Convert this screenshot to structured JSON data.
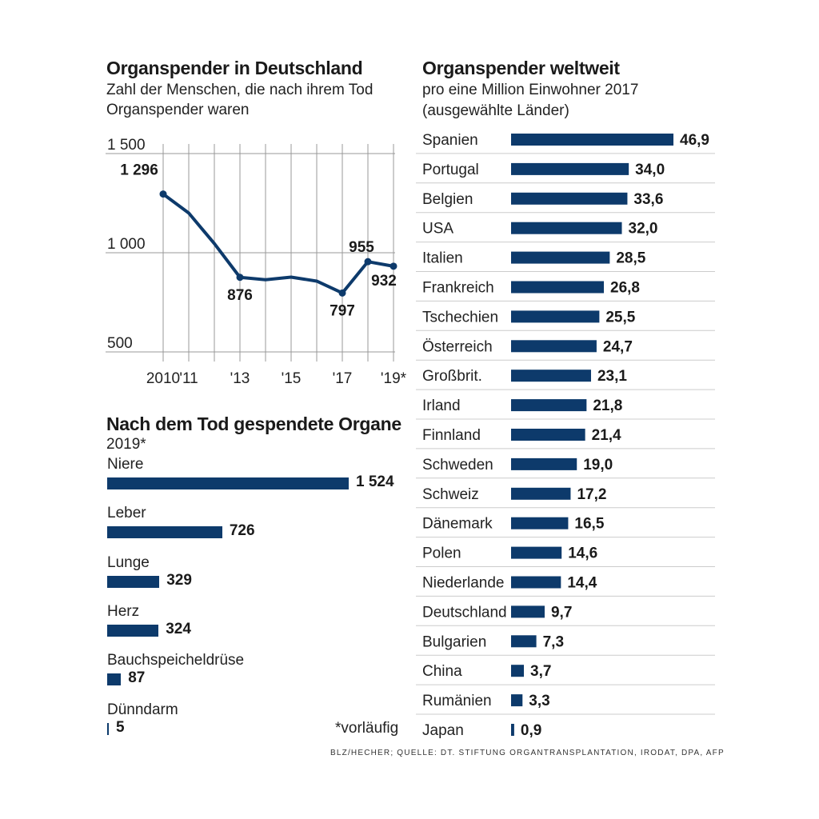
{
  "colors": {
    "bar": "#0d3a6b",
    "line": "#0d3a6b",
    "grid": "#999999",
    "rule": "#cccccc"
  },
  "chart_data": [
    {
      "id": "deutschland",
      "type": "line",
      "title": "Organspender in Deutschland",
      "subtitle": [
        "Zahl der Menschen, die nach ihrem Tod",
        "Organspender waren"
      ],
      "x": [
        2010,
        2011,
        2012,
        2013,
        2014,
        2015,
        2016,
        2017,
        2018,
        2019
      ],
      "xtick_values": [
        2010,
        2011,
        2013,
        2015,
        2017,
        2019
      ],
      "xtick_labels": [
        "2010",
        "'11",
        "'13",
        "'15",
        "'17",
        "'19*"
      ],
      "values": [
        1296,
        1200,
        1046,
        876,
        864,
        877,
        857,
        797,
        955,
        932
      ],
      "labeled_points": [
        {
          "index": 0,
          "text": "1 296"
        },
        {
          "index": 3,
          "text": "876"
        },
        {
          "index": 7,
          "text": "797"
        },
        {
          "index": 8,
          "text": "955"
        },
        {
          "index": 9,
          "text": "932"
        }
      ],
      "ytick_values": [
        1500,
        1000,
        500
      ],
      "ytick_labels": [
        "1 500",
        "1 000",
        "500"
      ],
      "ylim": [
        500,
        1500
      ]
    },
    {
      "id": "organe",
      "type": "bar",
      "title": "Nach dem Tod gespendete Organe",
      "subtitle": "2019*",
      "categories": [
        "Niere",
        "Leber",
        "Lunge",
        "Herz",
        "Bauchspeicheldrüse",
        "Dünndarm"
      ],
      "values": [
        1524,
        726,
        329,
        324,
        87,
        5
      ],
      "value_labels": [
        "1 524",
        "726",
        "329",
        "324",
        "87",
        "5"
      ]
    },
    {
      "id": "weltweit",
      "type": "bar",
      "title": "Organspender weltweit",
      "subtitle": [
        "pro eine Million Einwohner 2017",
        "(ausgewählte Länder)"
      ],
      "categories": [
        "Spanien",
        "Portugal",
        "Belgien",
        "USA",
        "Italien",
        "Frankreich",
        "Tschechien",
        "Österreich",
        "Großbrit.",
        "Irland",
        "Finnland",
        "Schweden",
        "Schweiz",
        "Dänemark",
        "Polen",
        "Niederlande",
        "Deutschland",
        "Bulgarien",
        "China",
        "Rumänien",
        "Japan"
      ],
      "values": [
        46.9,
        34.0,
        33.6,
        32.0,
        28.5,
        26.8,
        25.5,
        24.7,
        23.1,
        21.8,
        21.4,
        19.0,
        17.2,
        16.5,
        14.6,
        14.4,
        9.7,
        7.3,
        3.7,
        3.3,
        0.9
      ],
      "value_labels": [
        "46,9",
        "34,0",
        "33,6",
        "32,0",
        "28,5",
        "26,8",
        "25,5",
        "24,7",
        "23,1",
        "21,8",
        "21,4",
        "19,0",
        "17,2",
        "16,5",
        "14,6",
        "14,4",
        "9,7",
        "7,3",
        "3,7",
        "3,3",
        "0,9"
      ]
    }
  ],
  "footnote": "*vorläufig",
  "source": "BLZ/HECHER; QUELLE: DT. STIFTUNG ORGANTRANSPLANTATION, IRODAT, DPA, AFP"
}
